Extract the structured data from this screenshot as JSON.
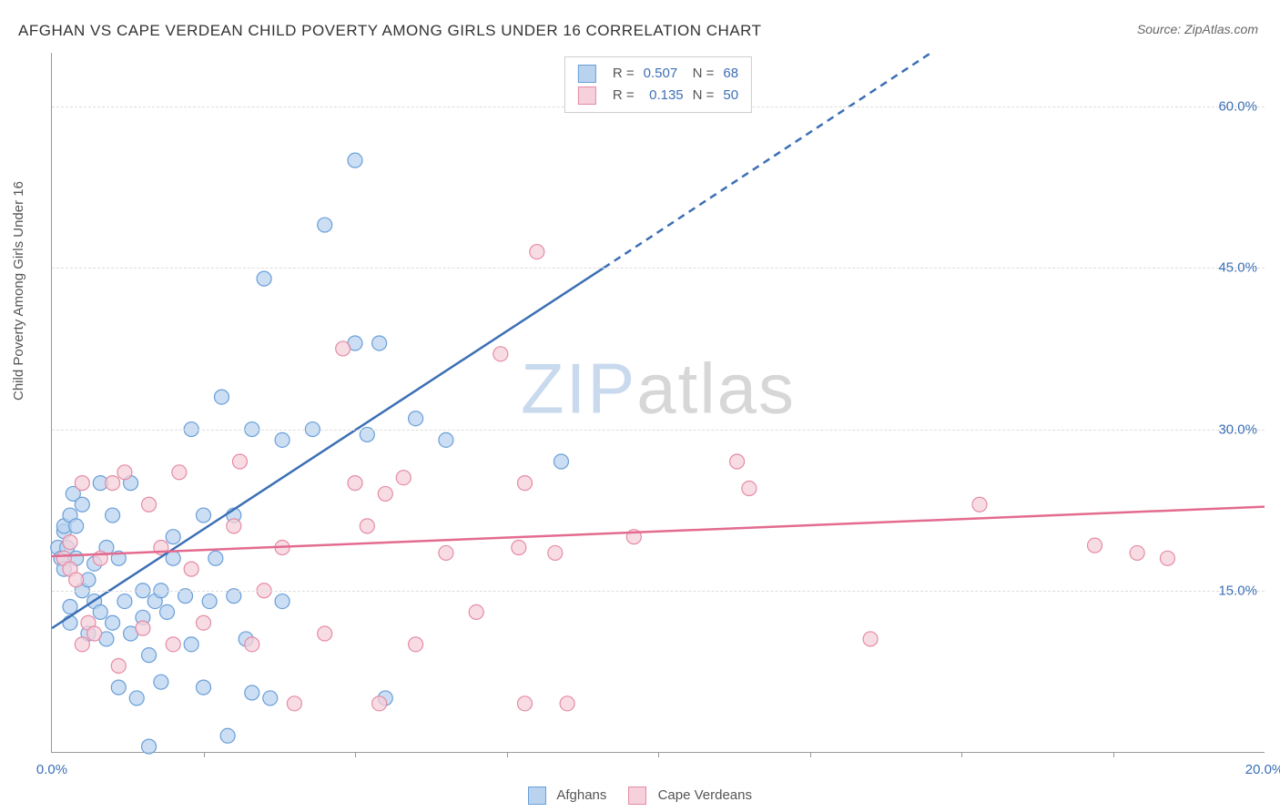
{
  "title": "AFGHAN VS CAPE VERDEAN CHILD POVERTY AMONG GIRLS UNDER 16 CORRELATION CHART",
  "source_label": "Source: ZipAtlas.com",
  "ylabel": "Child Poverty Among Girls Under 16",
  "watermark_a": "ZIP",
  "watermark_b": "atlas",
  "chart": {
    "type": "scatter",
    "xlim": [
      0,
      20
    ],
    "ylim": [
      0,
      65
    ],
    "x_ticks": [
      0,
      20
    ],
    "x_tick_labels": [
      "0.0%",
      "20.0%"
    ],
    "x_minor_ticks": [
      2.5,
      5,
      7.5,
      10,
      12.5,
      15,
      17.5
    ],
    "y_ticks": [
      15,
      30,
      45,
      60
    ],
    "y_tick_labels": [
      "15.0%",
      "30.0%",
      "45.0%",
      "60.0%"
    ],
    "tick_color": "#3b6fb5",
    "grid_color": "#dddddd",
    "background_color": "#ffffff",
    "axis_color": "#999999",
    "label_fontsize": 15,
    "title_fontsize": 17,
    "series": [
      {
        "name": "Afghans",
        "marker_fill": "#b9d3ef",
        "marker_stroke": "#6a9fd8",
        "marker_radius": 8,
        "line_color": "#3b6fb5",
        "line_width": 2.5,
        "r_value": "0.507",
        "n_value": "68",
        "trend": {
          "x1": 0,
          "y1": 11.5,
          "x2": 9.1,
          "y2": 45,
          "x2_dash": 14.5,
          "y2_dash": 65
        },
        "points": [
          [
            0.1,
            19
          ],
          [
            0.15,
            18
          ],
          [
            0.2,
            20.5
          ],
          [
            0.2,
            17
          ],
          [
            0.2,
            21
          ],
          [
            0.25,
            19
          ],
          [
            0.3,
            22
          ],
          [
            0.3,
            12
          ],
          [
            0.3,
            13.5
          ],
          [
            0.35,
            24
          ],
          [
            0.4,
            21
          ],
          [
            0.4,
            18
          ],
          [
            0.5,
            23
          ],
          [
            0.5,
            15
          ],
          [
            0.6,
            11
          ],
          [
            0.6,
            16
          ],
          [
            0.7,
            14
          ],
          [
            0.7,
            17.5
          ],
          [
            0.8,
            25
          ],
          [
            0.8,
            13
          ],
          [
            0.9,
            19
          ],
          [
            0.9,
            10.5
          ],
          [
            1.0,
            12
          ],
          [
            1.0,
            22
          ],
          [
            1.1,
            6
          ],
          [
            1.1,
            18
          ],
          [
            1.2,
            14
          ],
          [
            1.3,
            11
          ],
          [
            1.3,
            25
          ],
          [
            1.4,
            5
          ],
          [
            1.5,
            12.5
          ],
          [
            1.5,
            15
          ],
          [
            1.6,
            9
          ],
          [
            1.6,
            0.5
          ],
          [
            1.7,
            14
          ],
          [
            1.8,
            6.5
          ],
          [
            1.8,
            15
          ],
          [
            1.9,
            13
          ],
          [
            2.0,
            18
          ],
          [
            2.0,
            20
          ],
          [
            2.2,
            14.5
          ],
          [
            2.3,
            30
          ],
          [
            2.3,
            10
          ],
          [
            2.5,
            6
          ],
          [
            2.5,
            22
          ],
          [
            2.6,
            14
          ],
          [
            2.7,
            18
          ],
          [
            2.8,
            33
          ],
          [
            2.9,
            1.5
          ],
          [
            3.0,
            14.5
          ],
          [
            3.0,
            22
          ],
          [
            3.2,
            10.5
          ],
          [
            3.3,
            30
          ],
          [
            3.3,
            5.5
          ],
          [
            3.5,
            44
          ],
          [
            3.6,
            5
          ],
          [
            3.8,
            29
          ],
          [
            3.8,
            14
          ],
          [
            4.3,
            30
          ],
          [
            4.5,
            49
          ],
          [
            5.0,
            38
          ],
          [
            5.0,
            55
          ],
          [
            5.2,
            29.5
          ],
          [
            5.4,
            38
          ],
          [
            5.5,
            5
          ],
          [
            6.0,
            31
          ],
          [
            6.5,
            29
          ],
          [
            8.4,
            27
          ]
        ]
      },
      {
        "name": "Cape Verdeans",
        "marker_fill": "#f6d0da",
        "marker_stroke": "#e58ba5",
        "marker_radius": 8,
        "line_color": "#e36b8f",
        "line_width": 2.5,
        "r_value": "0.135",
        "n_value": "50",
        "trend": {
          "x1": 0,
          "y1": 18.2,
          "x2": 20,
          "y2": 22.8
        },
        "points": [
          [
            0.2,
            18
          ],
          [
            0.3,
            17
          ],
          [
            0.3,
            19.5
          ],
          [
            0.4,
            16
          ],
          [
            0.5,
            10
          ],
          [
            0.5,
            25
          ],
          [
            0.6,
            12
          ],
          [
            0.7,
            11
          ],
          [
            0.8,
            18
          ],
          [
            1.0,
            25
          ],
          [
            1.1,
            8
          ],
          [
            1.2,
            26
          ],
          [
            1.5,
            11.5
          ],
          [
            1.6,
            23
          ],
          [
            1.8,
            19
          ],
          [
            2.0,
            10
          ],
          [
            2.1,
            26
          ],
          [
            2.3,
            17
          ],
          [
            2.5,
            12
          ],
          [
            3.0,
            21
          ],
          [
            3.1,
            27
          ],
          [
            3.3,
            10
          ],
          [
            3.5,
            15
          ],
          [
            3.8,
            19
          ],
          [
            4.0,
            4.5
          ],
          [
            4.5,
            11
          ],
          [
            4.8,
            37.5
          ],
          [
            5.0,
            25
          ],
          [
            5.2,
            21
          ],
          [
            5.4,
            4.5
          ],
          [
            5.5,
            24
          ],
          [
            5.8,
            25.5
          ],
          [
            6.0,
            10
          ],
          [
            6.5,
            18.5
          ],
          [
            7.0,
            13
          ],
          [
            7.4,
            37
          ],
          [
            7.7,
            19
          ],
          [
            7.8,
            25
          ],
          [
            7.8,
            4.5
          ],
          [
            8.0,
            46.5
          ],
          [
            8.3,
            18.5
          ],
          [
            8.5,
            4.5
          ],
          [
            9.6,
            20
          ],
          [
            11.3,
            27
          ],
          [
            11.5,
            24.5
          ],
          [
            13.5,
            10.5
          ],
          [
            15.3,
            23
          ],
          [
            17.2,
            19.2
          ],
          [
            17.9,
            18.5
          ],
          [
            18.4,
            18
          ]
        ]
      }
    ]
  },
  "legend_bottom": [
    {
      "label": "Afghans",
      "fill": "#b9d3ef",
      "stroke": "#6a9fd8"
    },
    {
      "label": "Cape Verdeans",
      "fill": "#f6d0da",
      "stroke": "#e58ba5"
    }
  ],
  "legend_top_prefix_r": "R =",
  "legend_top_prefix_n": "N ="
}
